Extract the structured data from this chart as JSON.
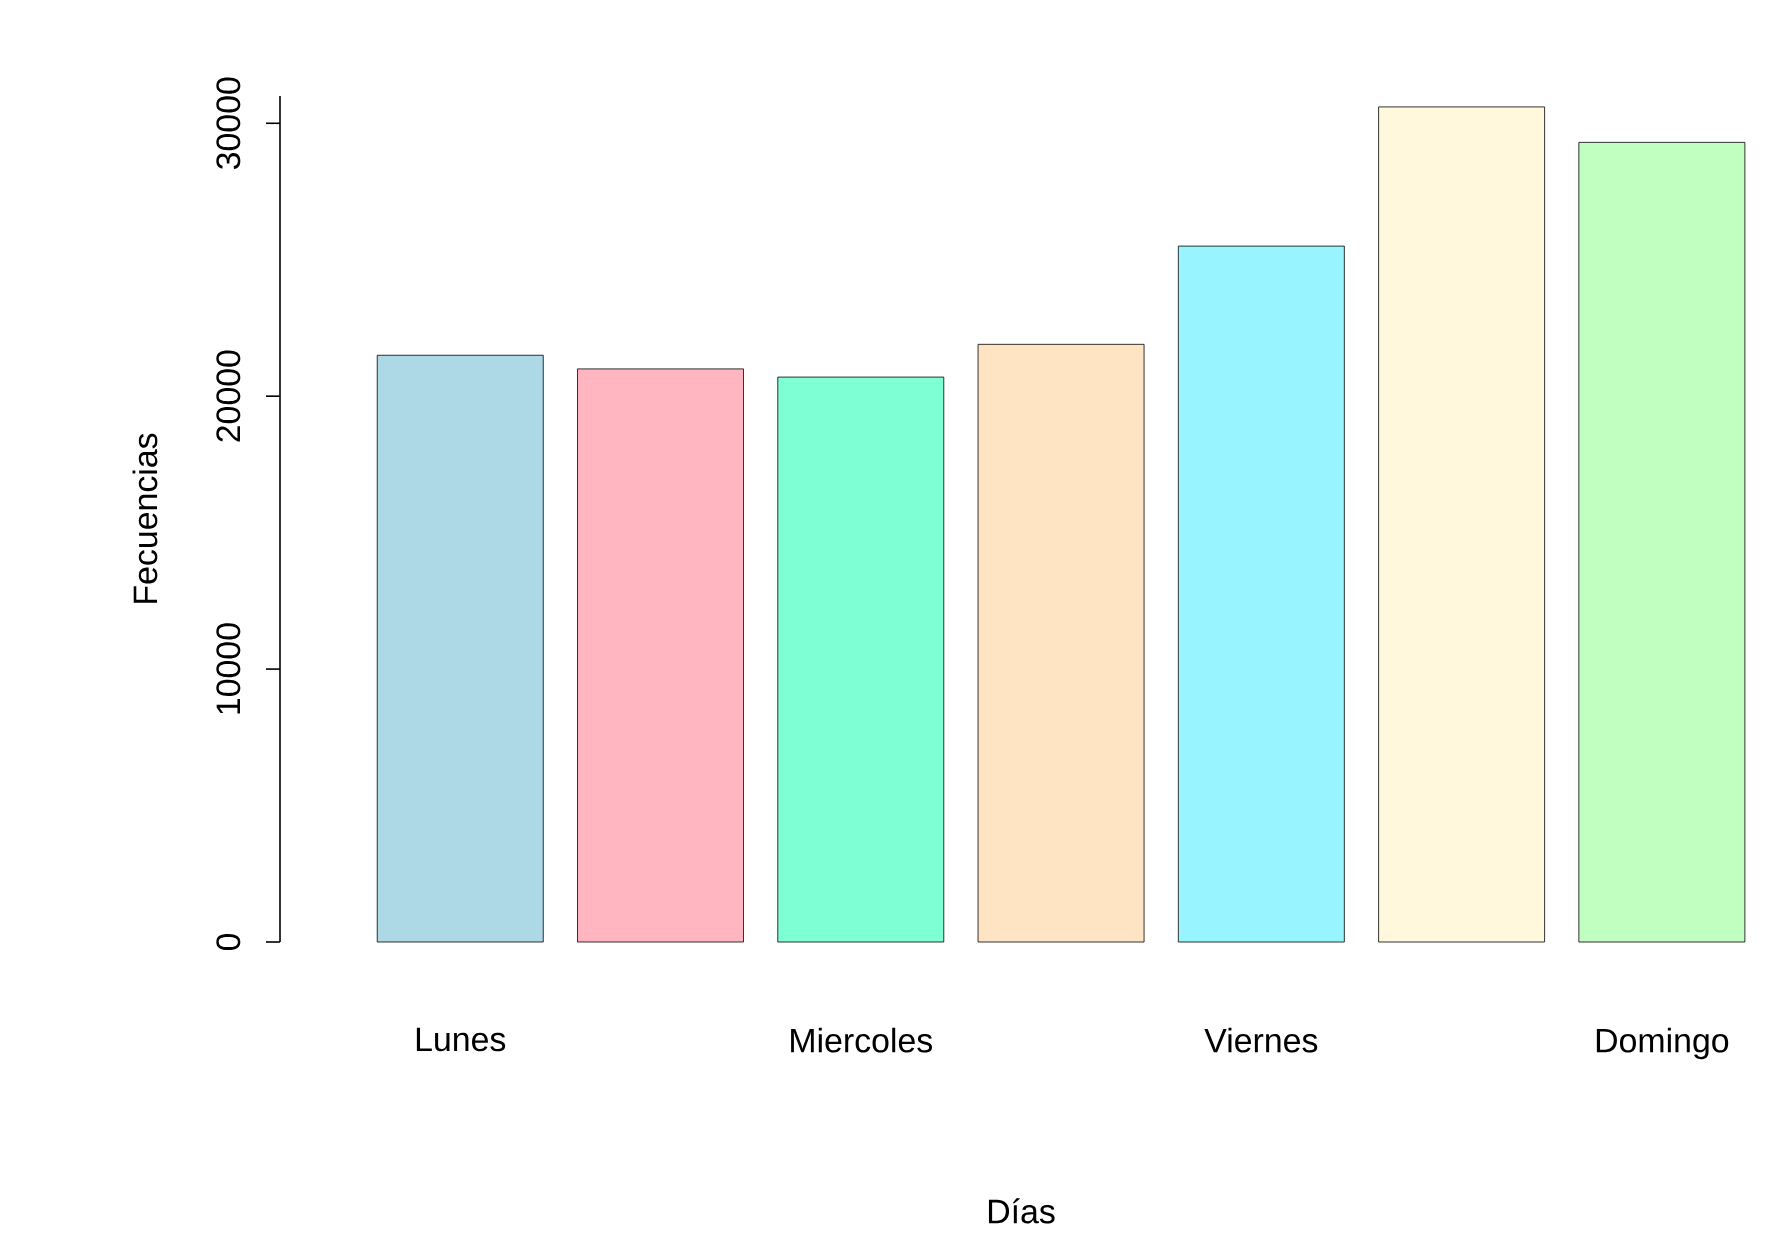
{
  "chart_data": {
    "type": "bar",
    "xlabel": "Días",
    "ylabel": "Fecuencias",
    "categories": [
      "Lunes",
      null,
      "Miercoles",
      null,
      "Viernes",
      null,
      "Domingo"
    ],
    "values": [
      21500,
      21000,
      20700,
      21900,
      25500,
      30600,
      29300
    ],
    "colors": [
      "#add8e6",
      "#ffb6c1",
      "#7fffd4",
      "#ffe4c4",
      "#98f5ff",
      "#fff8dc",
      "#c1ffc1"
    ],
    "ylim": [
      0,
      31000
    ],
    "yticks": [
      0,
      10000,
      20000,
      30000
    ],
    "grid": false
  }
}
